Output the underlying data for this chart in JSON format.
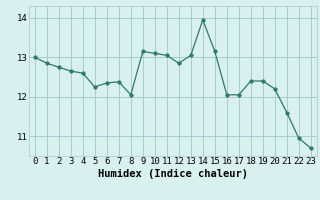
{
  "x": [
    0,
    1,
    2,
    3,
    4,
    5,
    6,
    7,
    8,
    9,
    10,
    11,
    12,
    13,
    14,
    15,
    16,
    17,
    18,
    19,
    20,
    21,
    22,
    23
  ],
  "y": [
    13.0,
    12.85,
    12.75,
    12.65,
    12.6,
    12.25,
    12.35,
    12.38,
    12.05,
    13.15,
    13.1,
    13.05,
    12.85,
    13.05,
    13.95,
    13.15,
    12.05,
    12.05,
    12.4,
    12.4,
    12.2,
    11.6,
    10.95,
    10.7
  ],
  "line_color": "#2d7a6a",
  "marker": "o",
  "marker_size": 2.5,
  "bg_color": "#d8f0ee",
  "grid_color": "#a8cccc",
  "xlabel": "Humidex (Indice chaleur)",
  "ylim": [
    10.5,
    14.3
  ],
  "xlim": [
    -0.5,
    23.5
  ],
  "yticks": [
    11,
    12,
    13,
    14
  ],
  "xticks": [
    0,
    1,
    2,
    3,
    4,
    5,
    6,
    7,
    8,
    9,
    10,
    11,
    12,
    13,
    14,
    15,
    16,
    17,
    18,
    19,
    20,
    21,
    22,
    23
  ],
  "tick_fontsize": 6.5,
  "xlabel_fontsize": 7.5
}
